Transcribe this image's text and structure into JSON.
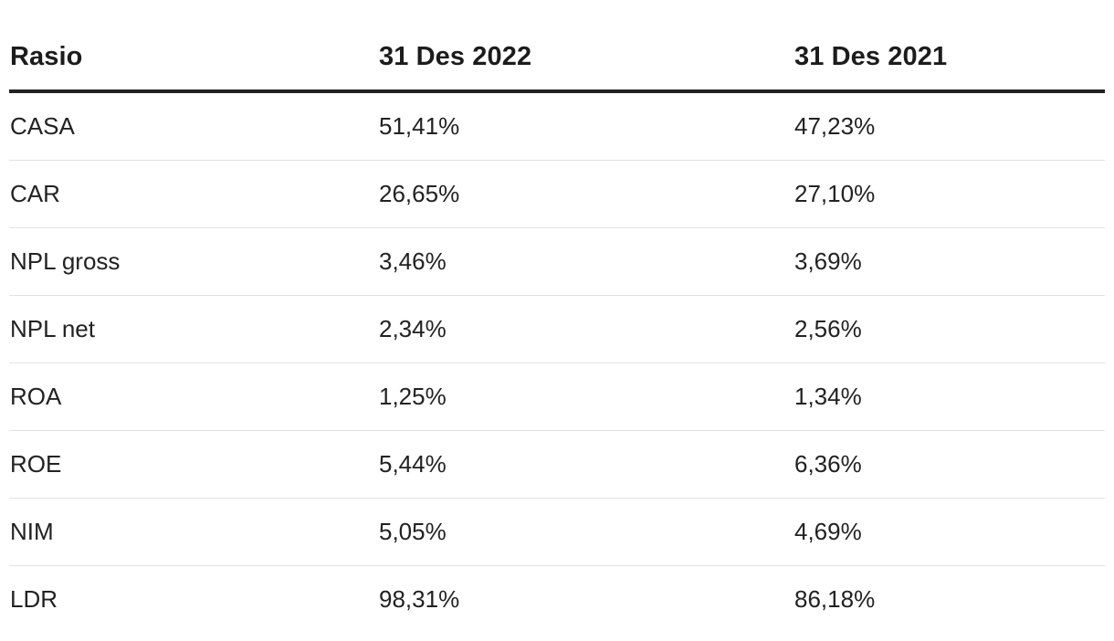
{
  "chart_data": {
    "type": "table",
    "columns": [
      "Rasio",
      "31 Des 2022",
      "31 Des 2021"
    ],
    "rows": [
      [
        "CASA",
        "51,41%",
        "47,23%"
      ],
      [
        "CAR",
        "26,65%",
        "27,10%"
      ],
      [
        "NPL gross",
        "3,46%",
        "3,69%"
      ],
      [
        "NPL net",
        "2,34%",
        "2,56%"
      ],
      [
        "ROA",
        "1,25%",
        "1,34%"
      ],
      [
        "ROE",
        "5,44%",
        "6,36%"
      ],
      [
        "NIM",
        "5,05%",
        "4,69%"
      ],
      [
        "LDR",
        "98,31%",
        "86,18%"
      ]
    ]
  }
}
